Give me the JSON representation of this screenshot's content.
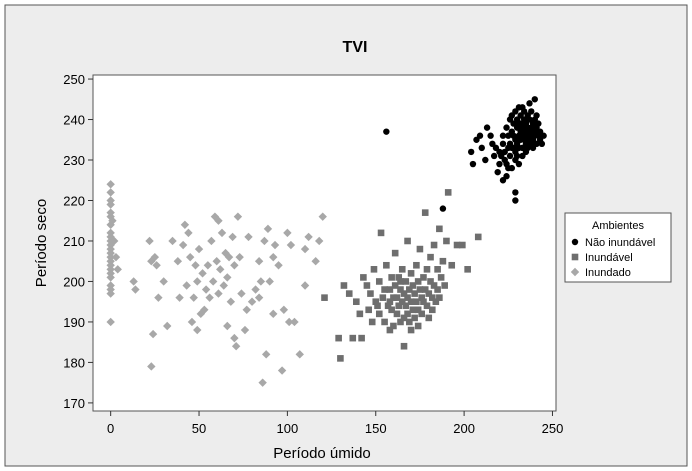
{
  "chart_data": {
    "type": "scatter",
    "title": "TVI",
    "xlabel": "Período úmido",
    "ylabel": "Período seco",
    "xlim": [
      -10,
      252
    ],
    "ylim": [
      168,
      251
    ],
    "xticks": [
      0,
      50,
      100,
      150,
      200,
      250
    ],
    "yticks": [
      170,
      180,
      190,
      200,
      210,
      220,
      230,
      240,
      250
    ],
    "grid": false,
    "legend": {
      "title": "Ambientes",
      "placement": "right",
      "entries": [
        "Não inundável",
        "Inundável",
        "Inundado"
      ]
    },
    "series": [
      {
        "name": "Não inundável",
        "marker": "circle",
        "color": "#000000",
        "points": [
          [
            156,
            237
          ],
          [
            188,
            218
          ],
          [
            204,
            232
          ],
          [
            205,
            229
          ],
          [
            207,
            235
          ],
          [
            209,
            236
          ],
          [
            210,
            233
          ],
          [
            212,
            230
          ],
          [
            213,
            238
          ],
          [
            215,
            236
          ],
          [
            216,
            234
          ],
          [
            217,
            231
          ],
          [
            218,
            233
          ],
          [
            219,
            227
          ],
          [
            220,
            232
          ],
          [
            220,
            229
          ],
          [
            221,
            231
          ],
          [
            222,
            234
          ],
          [
            222,
            236
          ],
          [
            222,
            225
          ],
          [
            223,
            232
          ],
          [
            223,
            230
          ],
          [
            224,
            238
          ],
          [
            224,
            229
          ],
          [
            225,
            228
          ],
          [
            225,
            233
          ],
          [
            225,
            236
          ],
          [
            226,
            234
          ],
          [
            226,
            240
          ],
          [
            226,
            231
          ],
          [
            227,
            237
          ],
          [
            227,
            241
          ],
          [
            227,
            228
          ],
          [
            228,
            239
          ],
          [
            228,
            236
          ],
          [
            228,
            233
          ],
          [
            229,
            230
          ],
          [
            229,
            242
          ],
          [
            229,
            235
          ],
          [
            229,
            232
          ],
          [
            230,
            238
          ],
          [
            230,
            234
          ],
          [
            230,
            231
          ],
          [
            230,
            240
          ],
          [
            231,
            236
          ],
          [
            231,
            243
          ],
          [
            231,
            233
          ],
          [
            231,
            229
          ],
          [
            232,
            241
          ],
          [
            232,
            237
          ],
          [
            232,
            235
          ],
          [
            232,
            239
          ],
          [
            233,
            233
          ],
          [
            233,
            238
          ],
          [
            233,
            231
          ],
          [
            233,
            236
          ],
          [
            234,
            240
          ],
          [
            234,
            235
          ],
          [
            234,
            242
          ],
          [
            234,
            237
          ],
          [
            235,
            234
          ],
          [
            235,
            239
          ],
          [
            235,
            236
          ],
          [
            235,
            232
          ],
          [
            236,
            238
          ],
          [
            236,
            241
          ],
          [
            236,
            235
          ],
          [
            236,
            233
          ],
          [
            237,
            237
          ],
          [
            237,
            240
          ],
          [
            237,
            244
          ],
          [
            237,
            236
          ],
          [
            238,
            238
          ],
          [
            238,
            234
          ],
          [
            238,
            242
          ],
          [
            238,
            236
          ],
          [
            239,
            239
          ],
          [
            239,
            235
          ],
          [
            239,
            233
          ],
          [
            240,
            237
          ],
          [
            240,
            240
          ],
          [
            240,
            245
          ],
          [
            240,
            236
          ],
          [
            241,
            238
          ],
          [
            241,
            234
          ],
          [
            241,
            241
          ],
          [
            242,
            236
          ],
          [
            242,
            239
          ],
          [
            243,
            235
          ],
          [
            243,
            237
          ],
          [
            244,
            234
          ],
          [
            245,
            236
          ],
          [
            229,
            222
          ],
          [
            229,
            220
          ],
          [
            224,
            226
          ],
          [
            227,
            233
          ],
          [
            231,
            239
          ],
          [
            233,
            243
          ]
        ]
      },
      {
        "name": "Inundável",
        "marker": "square",
        "color": "#6e6e6e",
        "points": [
          [
            121,
            196
          ],
          [
            129,
            186
          ],
          [
            130,
            181
          ],
          [
            132,
            199
          ],
          [
            135,
            197
          ],
          [
            137,
            186
          ],
          [
            139,
            195
          ],
          [
            141,
            192
          ],
          [
            142,
            186
          ],
          [
            143,
            201
          ],
          [
            145,
            199
          ],
          [
            146,
            193
          ],
          [
            147,
            197
          ],
          [
            148,
            190
          ],
          [
            149,
            203
          ],
          [
            150,
            195
          ],
          [
            151,
            194
          ],
          [
            152,
            200
          ],
          [
            152,
            192
          ],
          [
            153,
            212
          ],
          [
            154,
            196
          ],
          [
            155,
            198
          ],
          [
            155,
            190
          ],
          [
            156,
            204
          ],
          [
            157,
            194
          ],
          [
            158,
            198
          ],
          [
            158,
            188
          ],
          [
            159,
            201
          ],
          [
            159,
            193
          ],
          [
            160,
            196
          ],
          [
            160,
            189
          ],
          [
            161,
            199
          ],
          [
            161,
            207
          ],
          [
            162,
            192
          ],
          [
            162,
            196
          ],
          [
            163,
            194
          ],
          [
            163,
            201
          ],
          [
            164,
            198
          ],
          [
            164,
            190
          ],
          [
            165,
            203
          ],
          [
            165,
            195
          ],
          [
            166,
            184
          ],
          [
            166,
            197
          ],
          [
            166,
            191
          ],
          [
            167,
            200
          ],
          [
            167,
            194
          ],
          [
            168,
            196
          ],
          [
            168,
            210
          ],
          [
            169,
            198
          ],
          [
            169,
            190
          ],
          [
            170,
            202
          ],
          [
            170,
            195
          ],
          [
            171,
            193
          ],
          [
            171,
            199
          ],
          [
            172,
            197
          ],
          [
            172,
            191
          ],
          [
            173,
            204
          ],
          [
            173,
            195
          ],
          [
            174,
            200
          ],
          [
            174,
            193
          ],
          [
            175,
            198
          ],
          [
            175,
            208
          ],
          [
            176,
            196
          ],
          [
            176,
            192
          ],
          [
            177,
            201
          ],
          [
            177,
            195
          ],
          [
            178,
            217
          ],
          [
            178,
            198
          ],
          [
            179,
            194
          ],
          [
            179,
            203
          ],
          [
            180,
            197
          ],
          [
            180,
            191
          ],
          [
            181,
            206
          ],
          [
            181,
            200
          ],
          [
            182,
            196
          ],
          [
            182,
            193
          ],
          [
            183,
            199
          ],
          [
            183,
            209
          ],
          [
            184,
            195
          ],
          [
            185,
            203
          ],
          [
            185,
            198
          ],
          [
            186,
            196
          ],
          [
            186,
            213
          ],
          [
            187,
            201
          ],
          [
            188,
            205
          ],
          [
            189,
            199
          ],
          [
            190,
            210
          ],
          [
            191,
            222
          ],
          [
            193,
            204
          ],
          [
            196,
            209
          ],
          [
            199,
            209
          ],
          [
            202,
            203
          ],
          [
            208,
            211
          ],
          [
            164,
            200
          ],
          [
            158,
            195
          ],
          [
            170,
            188
          ],
          [
            174,
            189
          ],
          [
            168,
            192
          ]
        ]
      },
      {
        "name": "Inundado",
        "marker": "diamond",
        "color": "#a8a8a8",
        "points": [
          [
            0,
            224
          ],
          [
            0,
            222
          ],
          [
            0,
            220
          ],
          [
            0,
            219
          ],
          [
            0,
            217
          ],
          [
            0,
            216
          ],
          [
            0,
            214
          ],
          [
            0,
            212
          ],
          [
            0,
            211
          ],
          [
            0,
            210
          ],
          [
            0,
            209
          ],
          [
            0,
            208
          ],
          [
            0,
            207
          ],
          [
            0,
            206
          ],
          [
            0,
            205
          ],
          [
            0,
            204
          ],
          [
            0,
            203
          ],
          [
            0,
            202
          ],
          [
            0,
            201
          ],
          [
            0,
            199
          ],
          [
            0,
            198
          ],
          [
            0,
            197
          ],
          [
            0,
            190
          ],
          [
            1,
            215
          ],
          [
            2,
            210
          ],
          [
            3,
            206
          ],
          [
            4,
            203
          ],
          [
            13,
            200
          ],
          [
            14,
            198
          ],
          [
            22,
            210
          ],
          [
            23,
            205
          ],
          [
            23,
            179
          ],
          [
            24,
            187
          ],
          [
            25,
            206
          ],
          [
            26,
            204
          ],
          [
            27,
            196
          ],
          [
            30,
            200
          ],
          [
            32,
            189
          ],
          [
            35,
            210
          ],
          [
            38,
            205
          ],
          [
            39,
            196
          ],
          [
            41,
            209
          ],
          [
            42,
            214
          ],
          [
            43,
            199
          ],
          [
            44,
            212
          ],
          [
            45,
            206
          ],
          [
            46,
            190
          ],
          [
            47,
            196
          ],
          [
            48,
            204
          ],
          [
            49,
            200
          ],
          [
            50,
            208
          ],
          [
            51,
            192
          ],
          [
            52,
            202
          ],
          [
            53,
            193
          ],
          [
            54,
            198
          ],
          [
            55,
            204
          ],
          [
            56,
            196
          ],
          [
            57,
            210
          ],
          [
            58,
            200
          ],
          [
            59,
            216
          ],
          [
            60,
            205
          ],
          [
            61,
            197
          ],
          [
            62,
            203
          ],
          [
            63,
            212
          ],
          [
            64,
            199
          ],
          [
            65,
            207
          ],
          [
            66,
            189
          ],
          [
            67,
            206
          ],
          [
            68,
            195
          ],
          [
            69,
            211
          ],
          [
            70,
            186
          ],
          [
            71,
            184
          ],
          [
            72,
            216
          ],
          [
            73,
            206
          ],
          [
            74,
            197
          ],
          [
            76,
            188
          ],
          [
            78,
            211
          ],
          [
            80,
            195
          ],
          [
            82,
            198
          ],
          [
            84,
            205
          ],
          [
            85,
            200
          ],
          [
            86,
            175
          ],
          [
            87,
            210
          ],
          [
            88,
            182
          ],
          [
            89,
            213
          ],
          [
            90,
            200
          ],
          [
            92,
            192
          ],
          [
            93,
            209
          ],
          [
            95,
            204
          ],
          [
            97,
            178
          ],
          [
            98,
            193
          ],
          [
            100,
            212
          ],
          [
            101,
            190
          ],
          [
            102,
            209
          ],
          [
            104,
            190
          ],
          [
            107,
            182
          ],
          [
            110,
            208
          ],
          [
            112,
            211
          ],
          [
            116,
            205
          ],
          [
            118,
            210
          ],
          [
            120,
            216
          ],
          [
            110,
            199
          ],
          [
            84,
            196
          ],
          [
            61,
            215
          ],
          [
            70,
            204
          ],
          [
            49,
            188
          ],
          [
            77,
            193
          ],
          [
            92,
            206
          ],
          [
            66,
            201
          ]
        ]
      }
    ]
  }
}
